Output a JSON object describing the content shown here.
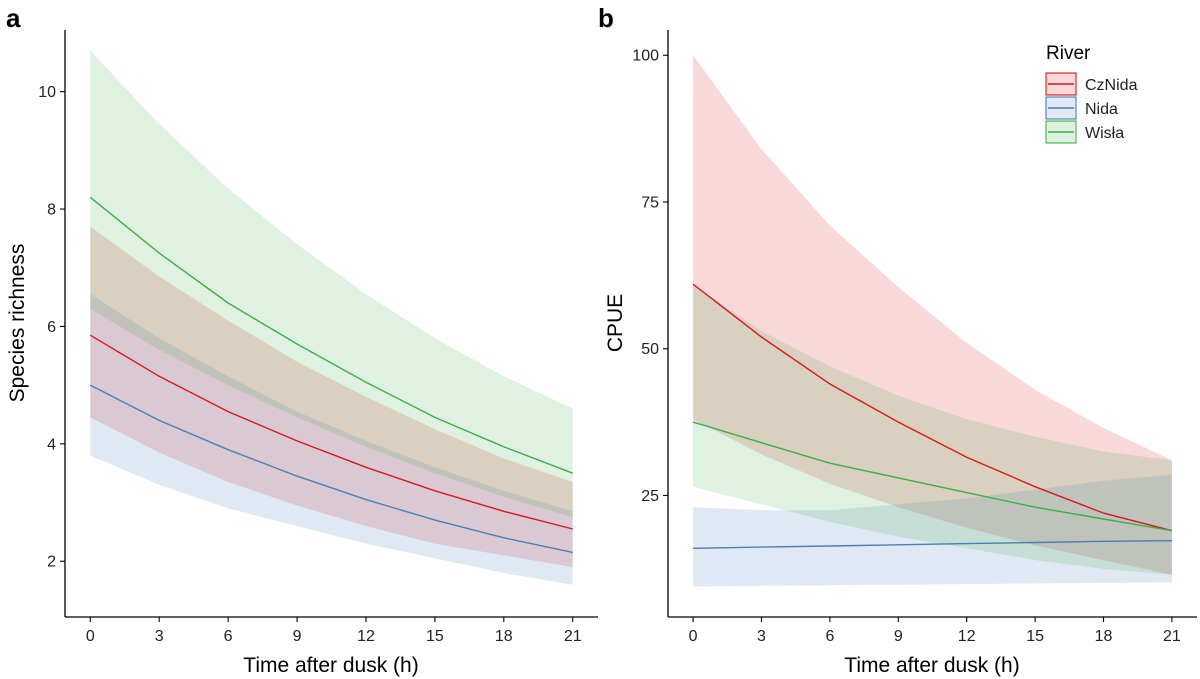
{
  "chart_data": [
    {
      "type": "line",
      "panel_label": "a",
      "title": "",
      "xlabel": "Time after dusk (h)",
      "ylabel": "Species richness",
      "xlim": [
        -1.1,
        22.1
      ],
      "ylim": [
        1.05,
        11.05
      ],
      "xticks": [
        0,
        3,
        6,
        9,
        12,
        15,
        18,
        21
      ],
      "yticks": [
        2,
        4,
        6,
        8,
        10
      ],
      "grid": false,
      "series": [
        {
          "name": "CzNida",
          "color": "#d7191c",
          "x": [
            0,
            3,
            6,
            9,
            12,
            15,
            18,
            21
          ],
          "y": [
            5.85,
            5.15,
            4.55,
            4.05,
            3.6,
            3.2,
            2.85,
            2.55
          ],
          "lower": [
            4.45,
            3.85,
            3.35,
            2.95,
            2.6,
            2.3,
            2.1,
            1.9
          ],
          "upper": [
            7.7,
            6.85,
            6.1,
            5.4,
            4.8,
            4.25,
            3.75,
            3.35
          ]
        },
        {
          "name": "Nida",
          "color": "#4a7fb5",
          "x": [
            0,
            3,
            6,
            9,
            12,
            15,
            18,
            21
          ],
          "y": [
            5.0,
            4.4,
            3.9,
            3.45,
            3.05,
            2.7,
            2.4,
            2.15
          ],
          "lower": [
            3.8,
            3.3,
            2.9,
            2.6,
            2.3,
            2.05,
            1.8,
            1.6
          ],
          "upper": [
            6.55,
            5.8,
            5.15,
            4.55,
            4.05,
            3.6,
            3.2,
            2.85
          ]
        },
        {
          "name": "Wisła",
          "color": "#3fae49",
          "x": [
            0,
            3,
            6,
            9,
            12,
            15,
            18,
            21
          ],
          "y": [
            8.2,
            7.25,
            6.4,
            5.7,
            5.05,
            4.45,
            3.95,
            3.5
          ],
          "lower": [
            6.3,
            5.6,
            5.0,
            4.45,
            3.95,
            3.5,
            3.1,
            2.75
          ],
          "upper": [
            10.7,
            9.45,
            8.35,
            7.4,
            6.55,
            5.8,
            5.15,
            4.6
          ]
        }
      ]
    },
    {
      "type": "line",
      "panel_label": "b",
      "title": "",
      "xlabel": "Time after dusk (h)",
      "ylabel": "CPUE",
      "xlim": [
        -1.1,
        22.1
      ],
      "ylim": [
        4.3,
        104.3
      ],
      "xticks": [
        0,
        3,
        6,
        9,
        12,
        15,
        18,
        21
      ],
      "yticks": [
        25,
        50,
        75,
        100
      ],
      "grid": false,
      "series": [
        {
          "name": "CzNida",
          "color": "#d7191c",
          "x": [
            0,
            3,
            6,
            9,
            12,
            15,
            18,
            21
          ],
          "y": [
            61,
            52,
            44,
            37.5,
            31.5,
            26.5,
            22,
            19
          ],
          "lower": [
            38,
            32,
            27,
            23,
            19.5,
            16.5,
            14,
            11.5
          ],
          "upper": [
            100,
            84,
            71,
            60.5,
            51,
            43,
            36.5,
            31
          ]
        },
        {
          "name": "Nida",
          "color": "#4a7fb5",
          "x": [
            0,
            3,
            6,
            9,
            12,
            15,
            18,
            21
          ],
          "y": [
            16,
            16.2,
            16.4,
            16.6,
            16.8,
            17,
            17.2,
            17.3
          ],
          "lower": [
            9.5,
            9.6,
            9.7,
            9.8,
            9.9,
            10,
            10.1,
            10.2
          ],
          "upper": [
            23,
            22.5,
            22.5,
            23.5,
            24.5,
            26,
            27.5,
            28.5
          ]
        },
        {
          "name": "Wisła",
          "color": "#3fae49",
          "x": [
            0,
            3,
            6,
            9,
            12,
            15,
            18,
            21
          ],
          "y": [
            37.5,
            34,
            30.5,
            28,
            25.5,
            23,
            21,
            19
          ],
          "lower": [
            26.5,
            23.5,
            20.5,
            18,
            16,
            14,
            12.5,
            11.5
          ],
          "upper": [
            61,
            53,
            47,
            42,
            38,
            35,
            32.5,
            31
          ]
        }
      ],
      "legend": {
        "title": "River",
        "entries": [
          "CzNida",
          "Nida",
          "Wisła"
        ],
        "position": "top-right"
      }
    }
  ]
}
